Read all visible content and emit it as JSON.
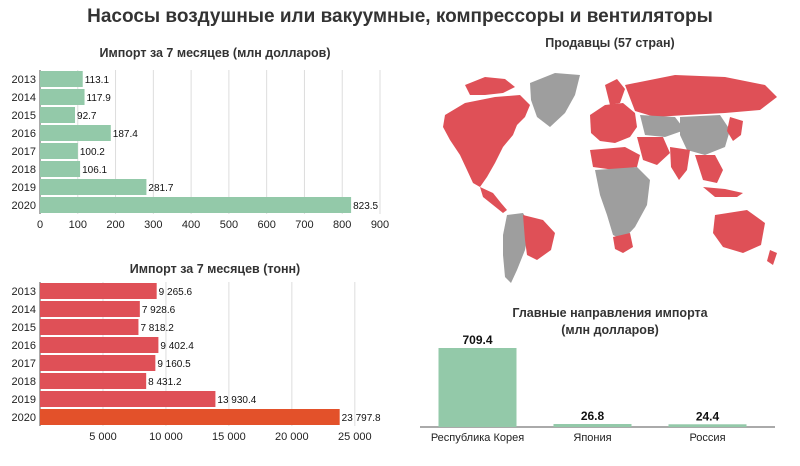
{
  "title": "Насосы воздушные или вакуумные, компрессоры и вентиляторы",
  "colors": {
    "green": "#93c9a9",
    "red": "#df5057",
    "orange": "#e3512a",
    "map_gray": "#9e9e9e",
    "grid": "#dddddd"
  },
  "chart_data": [
    {
      "type": "bar",
      "orientation": "horizontal",
      "title": "Импорт за 7 месяцев (млн долларов)",
      "categories": [
        "2013",
        "2014",
        "2015",
        "2016",
        "2017",
        "2018",
        "2019",
        "2020"
      ],
      "values": [
        113.1,
        117.9,
        92.7,
        187.4,
        100.2,
        106.1,
        281.7,
        823.5
      ],
      "value_labels": [
        "113.1",
        "117.9",
        "92.7",
        "187.4",
        "100.2",
        "106.1",
        "281.7",
        "823.5"
      ],
      "xlim": [
        0,
        900
      ],
      "xticks": [
        0,
        100,
        200,
        300,
        400,
        500,
        600,
        700,
        800,
        900
      ],
      "xtick_labels": [
        "0",
        "100",
        "200",
        "300",
        "400",
        "500",
        "600",
        "700",
        "800",
        "900"
      ],
      "grid": true,
      "color": "#93c9a9"
    },
    {
      "type": "bar",
      "orientation": "horizontal",
      "title": "Импорт за 7 месяцев (тонн)",
      "categories": [
        "2013",
        "2014",
        "2015",
        "2016",
        "2017",
        "2018",
        "2019",
        "2020"
      ],
      "values": [
        9265.6,
        7928.6,
        7818.2,
        9402.4,
        9160.5,
        8431.2,
        13930.4,
        23797.8
      ],
      "value_labels": [
        "9 265.6",
        "7 928.6",
        "7 818.2",
        "9 402.4",
        "9 160.5",
        "8 431.2",
        "13 930.4",
        "23 797.8"
      ],
      "xlim": [
        0,
        27000
      ],
      "xticks": [
        5000,
        10000,
        15000,
        20000,
        25000
      ],
      "xtick_labels": [
        "5 000",
        "10 000",
        "15 000",
        "20 000",
        "25 000"
      ],
      "grid": true,
      "color": "#df5057",
      "highlight_color": "#e3512a"
    },
    {
      "type": "bar",
      "orientation": "vertical",
      "title": "Главные направления импорта",
      "subtitle": "(млн долларов)",
      "categories": [
        "Республика Корея",
        "Япония",
        "Россия"
      ],
      "values": [
        709.4,
        26.8,
        24.4
      ],
      "value_labels": [
        "709.4",
        "26.8",
        "24.4"
      ],
      "ylim": [
        0,
        709.4
      ],
      "color": "#93c9a9"
    }
  ],
  "map": {
    "title": "Продавцы (57 стран)",
    "highlight_color": "#df5057",
    "base_color": "#9e9e9e"
  }
}
